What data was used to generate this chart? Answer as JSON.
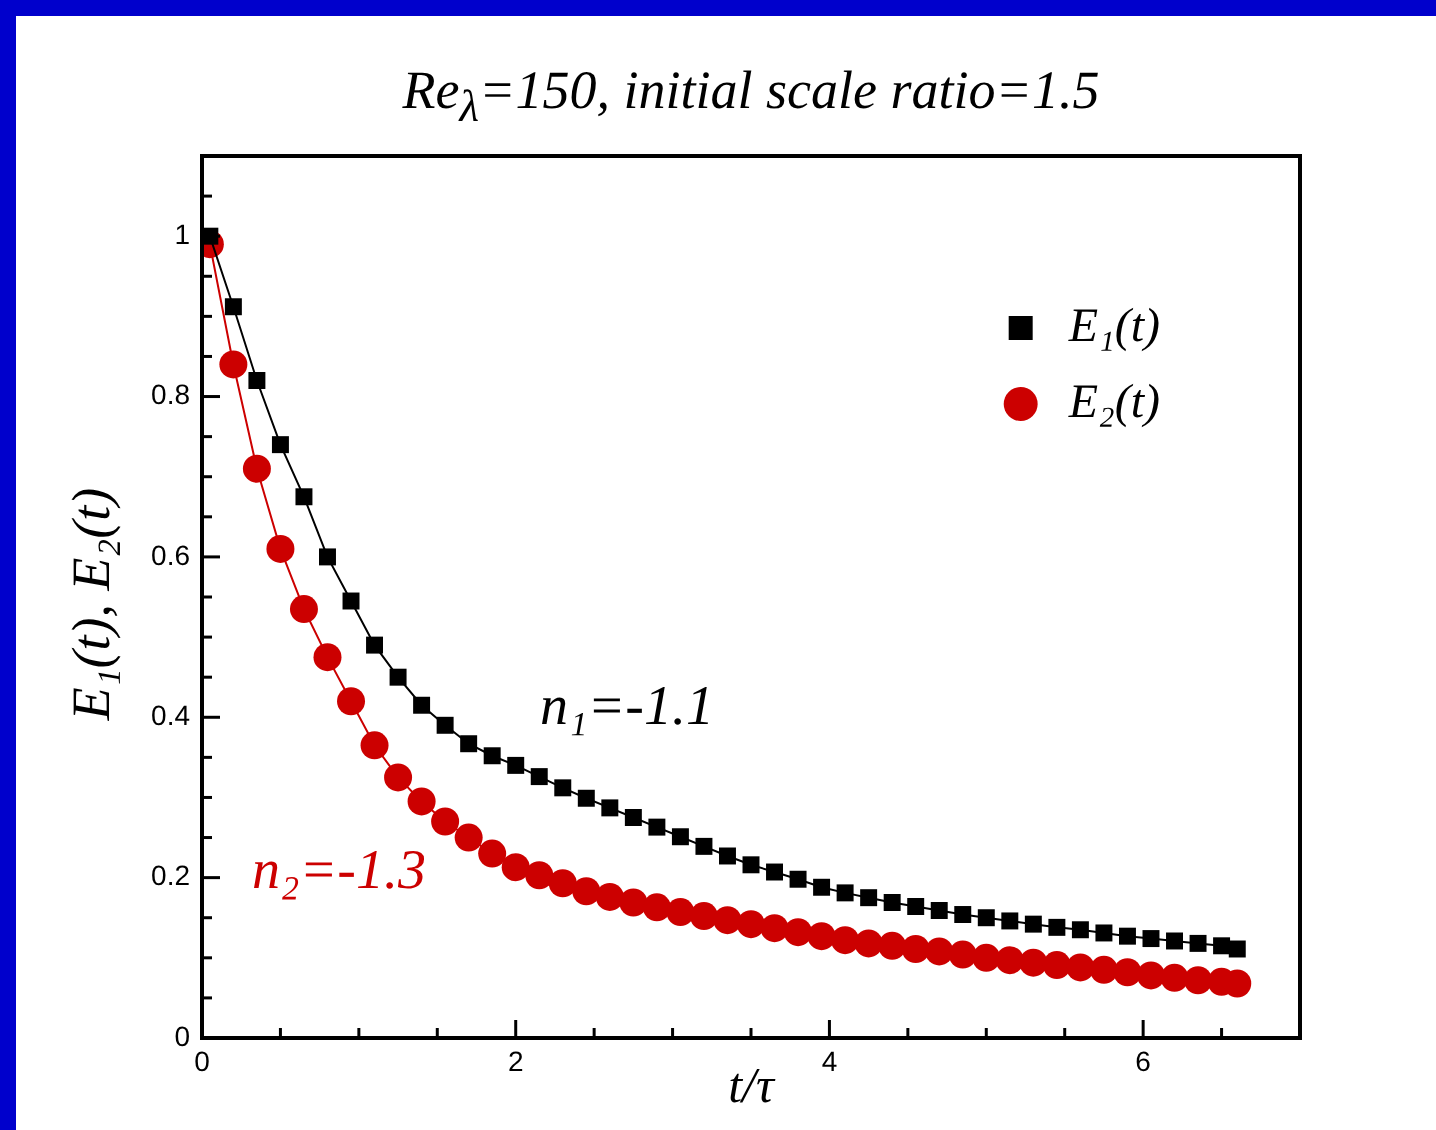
{
  "chart_data": {
    "type": "line",
    "title": "Re$_{λ}$=150, initial scale ratio=1.5",
    "xlabel": "t/τ",
    "ylabel": "E₁(t), E₂(t)",
    "x": [
      0.05,
      0.2,
      0.35,
      0.5,
      0.65,
      0.8,
      0.95,
      1.1,
      1.25,
      1.4,
      1.55,
      1.7,
      1.85,
      2.0,
      2.15,
      2.3,
      2.45,
      2.6,
      2.75,
      2.9,
      3.05,
      3.2,
      3.35,
      3.5,
      3.65,
      3.8,
      3.95,
      4.1,
      4.25,
      4.4,
      4.55,
      4.7,
      4.85,
      5.0,
      5.15,
      5.3,
      5.45,
      5.6,
      5.75,
      5.9,
      6.05,
      6.2,
      6.35,
      6.5,
      6.6
    ],
    "series": [
      {
        "name": "E₁(t)",
        "color": "#000000",
        "marker": "square",
        "values": [
          1.0,
          0.912,
          0.82,
          0.74,
          0.675,
          0.6,
          0.545,
          0.49,
          0.45,
          0.415,
          0.39,
          0.367,
          0.352,
          0.34,
          0.326,
          0.312,
          0.299,
          0.287,
          0.275,
          0.263,
          0.251,
          0.239,
          0.227,
          0.216,
          0.207,
          0.198,
          0.188,
          0.181,
          0.175,
          0.169,
          0.164,
          0.159,
          0.154,
          0.15,
          0.146,
          0.142,
          0.138,
          0.135,
          0.131,
          0.127,
          0.124,
          0.121,
          0.118,
          0.115,
          0.111
        ]
      },
      {
        "name": "E₂(t)",
        "color": "#cc0000",
        "marker": "circle",
        "values": [
          0.99,
          0.84,
          0.71,
          0.61,
          0.535,
          0.475,
          0.42,
          0.365,
          0.325,
          0.295,
          0.27,
          0.25,
          0.23,
          0.213,
          0.203,
          0.193,
          0.183,
          0.176,
          0.169,
          0.163,
          0.157,
          0.152,
          0.147,
          0.142,
          0.137,
          0.132,
          0.127,
          0.122,
          0.118,
          0.115,
          0.111,
          0.108,
          0.104,
          0.1,
          0.097,
          0.094,
          0.091,
          0.088,
          0.085,
          0.082,
          0.078,
          0.075,
          0.072,
          0.07,
          0.068
        ]
      }
    ],
    "annotations": [
      "n₁=-1.1",
      "n₂=-1.3"
    ],
    "xlim": [
      0,
      7
    ],
    "xticks": [
      0,
      {
        "value": 0.5,
        "label": null
      },
      {
        "value": 1,
        "label": null
      },
      {
        "value": 1.5,
        "label": null
      },
      2,
      {
        "value": 2.5,
        "label": null
      },
      {
        "value": 3,
        "label": null
      },
      {
        "value": 3.5,
        "label": null
      },
      4,
      {
        "value": 4.5,
        "label": null
      },
      {
        "value": 5,
        "label": null
      },
      {
        "value": 5.5,
        "label": null
      },
      6,
      {
        "value": 6.5,
        "label": null
      }
    ],
    "ylim": [
      0,
      1.1
    ],
    "yticks": [
      0,
      {
        "value": 0.05,
        "label": null
      },
      {
        "value": 0.1,
        "label": null
      },
      {
        "value": 0.15,
        "label": null
      },
      0.2,
      {
        "value": 0.25,
        "label": null
      },
      {
        "value": 0.3,
        "label": null
      },
      {
        "value": 0.35,
        "label": null
      },
      0.4,
      {
        "value": 0.45,
        "label": null
      },
      {
        "value": 0.5,
        "label": null
      },
      {
        "value": 0.55,
        "label": null
      },
      0.6,
      {
        "value": 0.65,
        "label": null
      },
      {
        "value": 0.7,
        "label": null
      },
      {
        "value": 0.75,
        "label": null
      },
      0.8,
      {
        "value": 0.85,
        "label": null
      },
      {
        "value": 0.9,
        "label": null
      },
      {
        "value": 0.95,
        "label": null
      },
      1,
      {
        "value": 1.05,
        "label": null
      }
    ],
    "grid": false,
    "legend": "top right"
  }
}
